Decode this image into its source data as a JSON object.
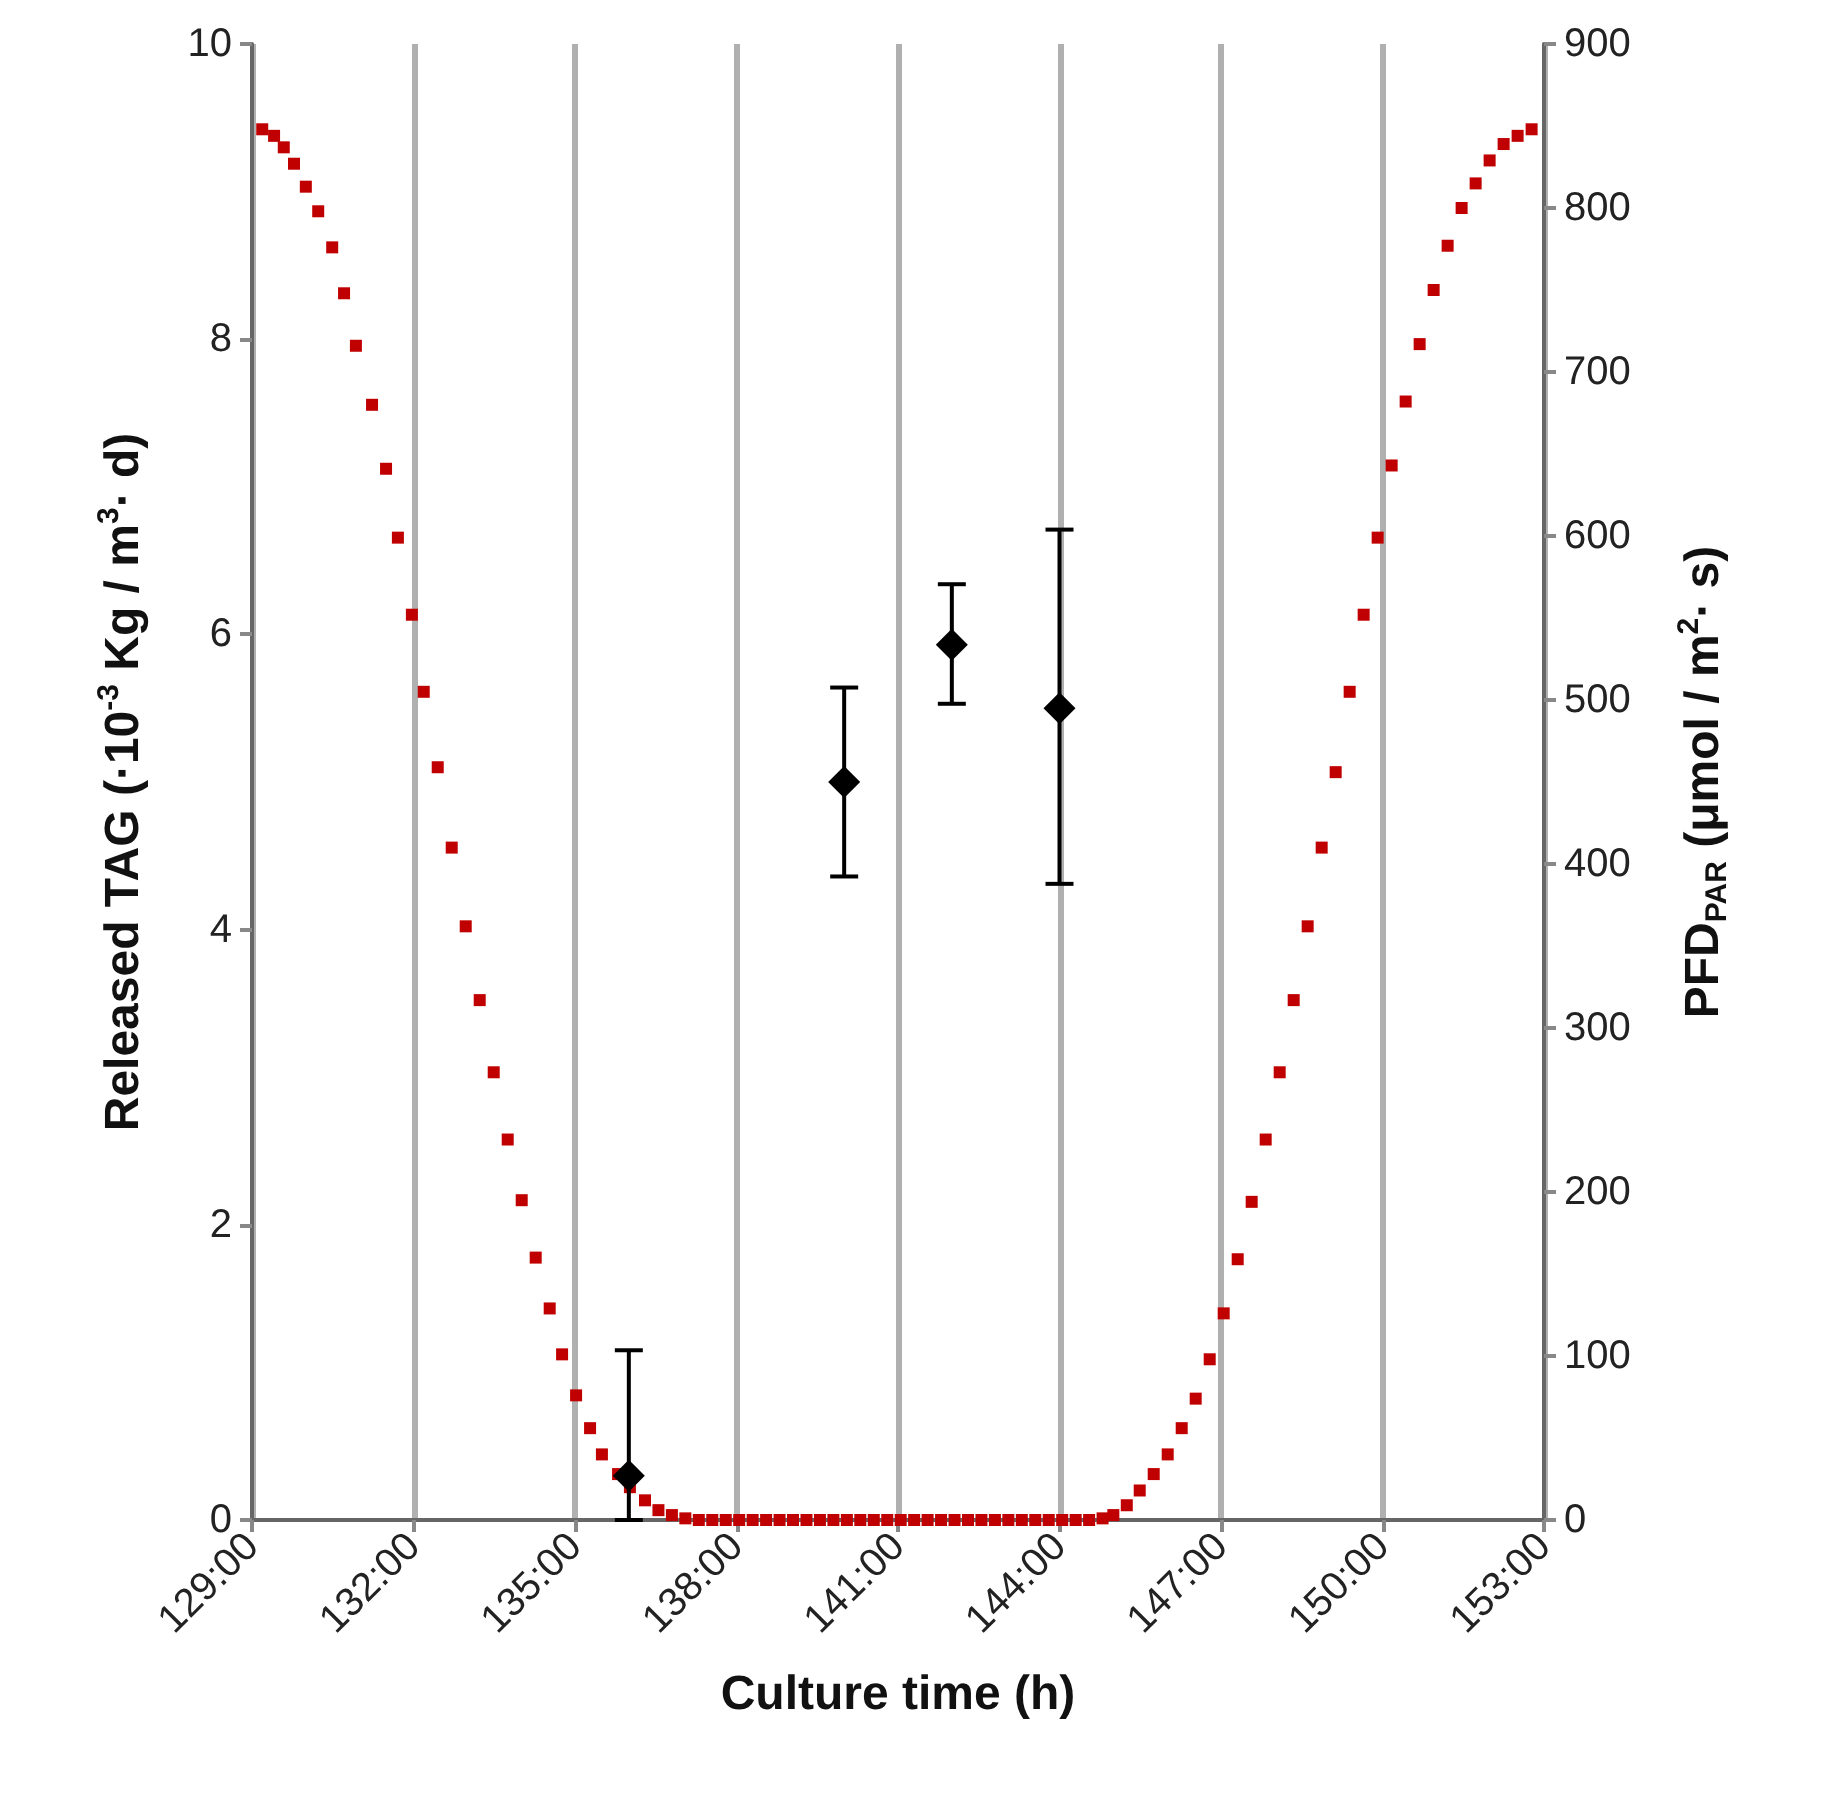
{
  "chart_data": {
    "type": "scatter",
    "xlabel": "Culture time (h)",
    "ylabel": "Released TAG (·10$^{-3}$ Kg / m$^{3}$· d)",
    "y2label": "PFD$_{PAR}$ (μmol / m$^{2}$· s)",
    "xlim": [
      129,
      153
    ],
    "xticks": [
      {
        "value": 129,
        "label": "129:00"
      },
      {
        "value": 132,
        "label": "132:00"
      },
      {
        "value": 135,
        "label": "135:00"
      },
      {
        "value": 138,
        "label": "138:00"
      },
      {
        "value": 141,
        "label": "141:00"
      },
      {
        "value": 144,
        "label": "144:00"
      },
      {
        "value": 147,
        "label": "147:00"
      },
      {
        "value": 150,
        "label": "150:00"
      },
      {
        "value": 153,
        "label": "153:00"
      }
    ],
    "ylim": [
      0,
      10
    ],
    "yticks": [
      0,
      2,
      4,
      6,
      8,
      10
    ],
    "y2lim": [
      0,
      900
    ],
    "y2ticks": [
      0,
      100,
      200,
      300,
      400,
      500,
      600,
      700,
      800,
      900
    ],
    "grid": "x",
    "series": [
      {
        "axis": "y2",
        "marker": "square",
        "color": "#c00000",
        "x": [
          129.19,
          129.41,
          129.59,
          129.78,
          130.0,
          130.23,
          130.49,
          130.71,
          130.93,
          131.23,
          131.49,
          131.71,
          131.97,
          132.19,
          132.45,
          132.71,
          132.97,
          133.23,
          133.49,
          133.75,
          134.01,
          134.27,
          134.53,
          134.76,
          135.02,
          135.28,
          135.5,
          135.8,
          136.02,
          136.3,
          136.55,
          136.8,
          137.05,
          137.3,
          137.55,
          137.8,
          138.05,
          138.3,
          138.55,
          138.8,
          139.05,
          139.3,
          139.55,
          139.8,
          140.05,
          140.3,
          140.55,
          140.8,
          141.05,
          141.3,
          141.55,
          141.8,
          142.05,
          142.3,
          142.55,
          142.8,
          143.05,
          143.3,
          143.55,
          143.8,
          144.05,
          144.3,
          144.55,
          144.8,
          145.0,
          145.25,
          145.49,
          145.75,
          146.01,
          146.27,
          146.53,
          146.79,
          147.05,
          147.31,
          147.57,
          147.83,
          148.09,
          148.35,
          148.61,
          148.87,
          149.13,
          149.39,
          149.65,
          149.91,
          150.17,
          150.43,
          150.69,
          150.95,
          151.21,
          151.47,
          151.73,
          151.99,
          152.25,
          152.51,
          152.77
        ],
        "values": [
          848,
          844,
          837,
          827,
          813,
          798,
          776,
          748,
          716,
          680,
          641,
          599,
          552,
          505,
          459,
          410,
          362,
          317,
          273,
          232,
          195,
          160,
          129,
          101,
          76,
          56,
          40,
          28,
          20,
          12,
          6,
          3,
          1,
          0,
          0,
          0,
          0,
          0,
          0,
          0,
          0,
          0,
          0,
          0,
          0,
          0,
          0,
          0,
          0,
          0,
          0,
          0,
          0,
          0,
          0,
          0,
          0,
          0,
          0,
          0,
          0,
          0,
          0,
          1,
          3,
          9,
          18,
          28,
          40,
          56,
          74,
          98,
          126,
          159,
          194,
          232,
          273,
          317,
          362,
          410,
          456,
          505,
          552,
          599,
          643,
          682,
          717,
          750,
          777,
          800,
          815,
          829,
          839,
          844,
          848
        ]
      },
      {
        "marker": "diamond",
        "color": "#000000",
        "x": [
          136,
          140,
          142,
          144
        ],
        "values": [
          0.3,
          5.0,
          5.93,
          5.5
        ],
        "errors": [
          [
            0,
            1.15
          ],
          [
            4.36,
            5.64
          ],
          [
            5.53,
            6.34
          ],
          [
            4.31,
            6.71
          ]
        ]
      }
    ]
  }
}
